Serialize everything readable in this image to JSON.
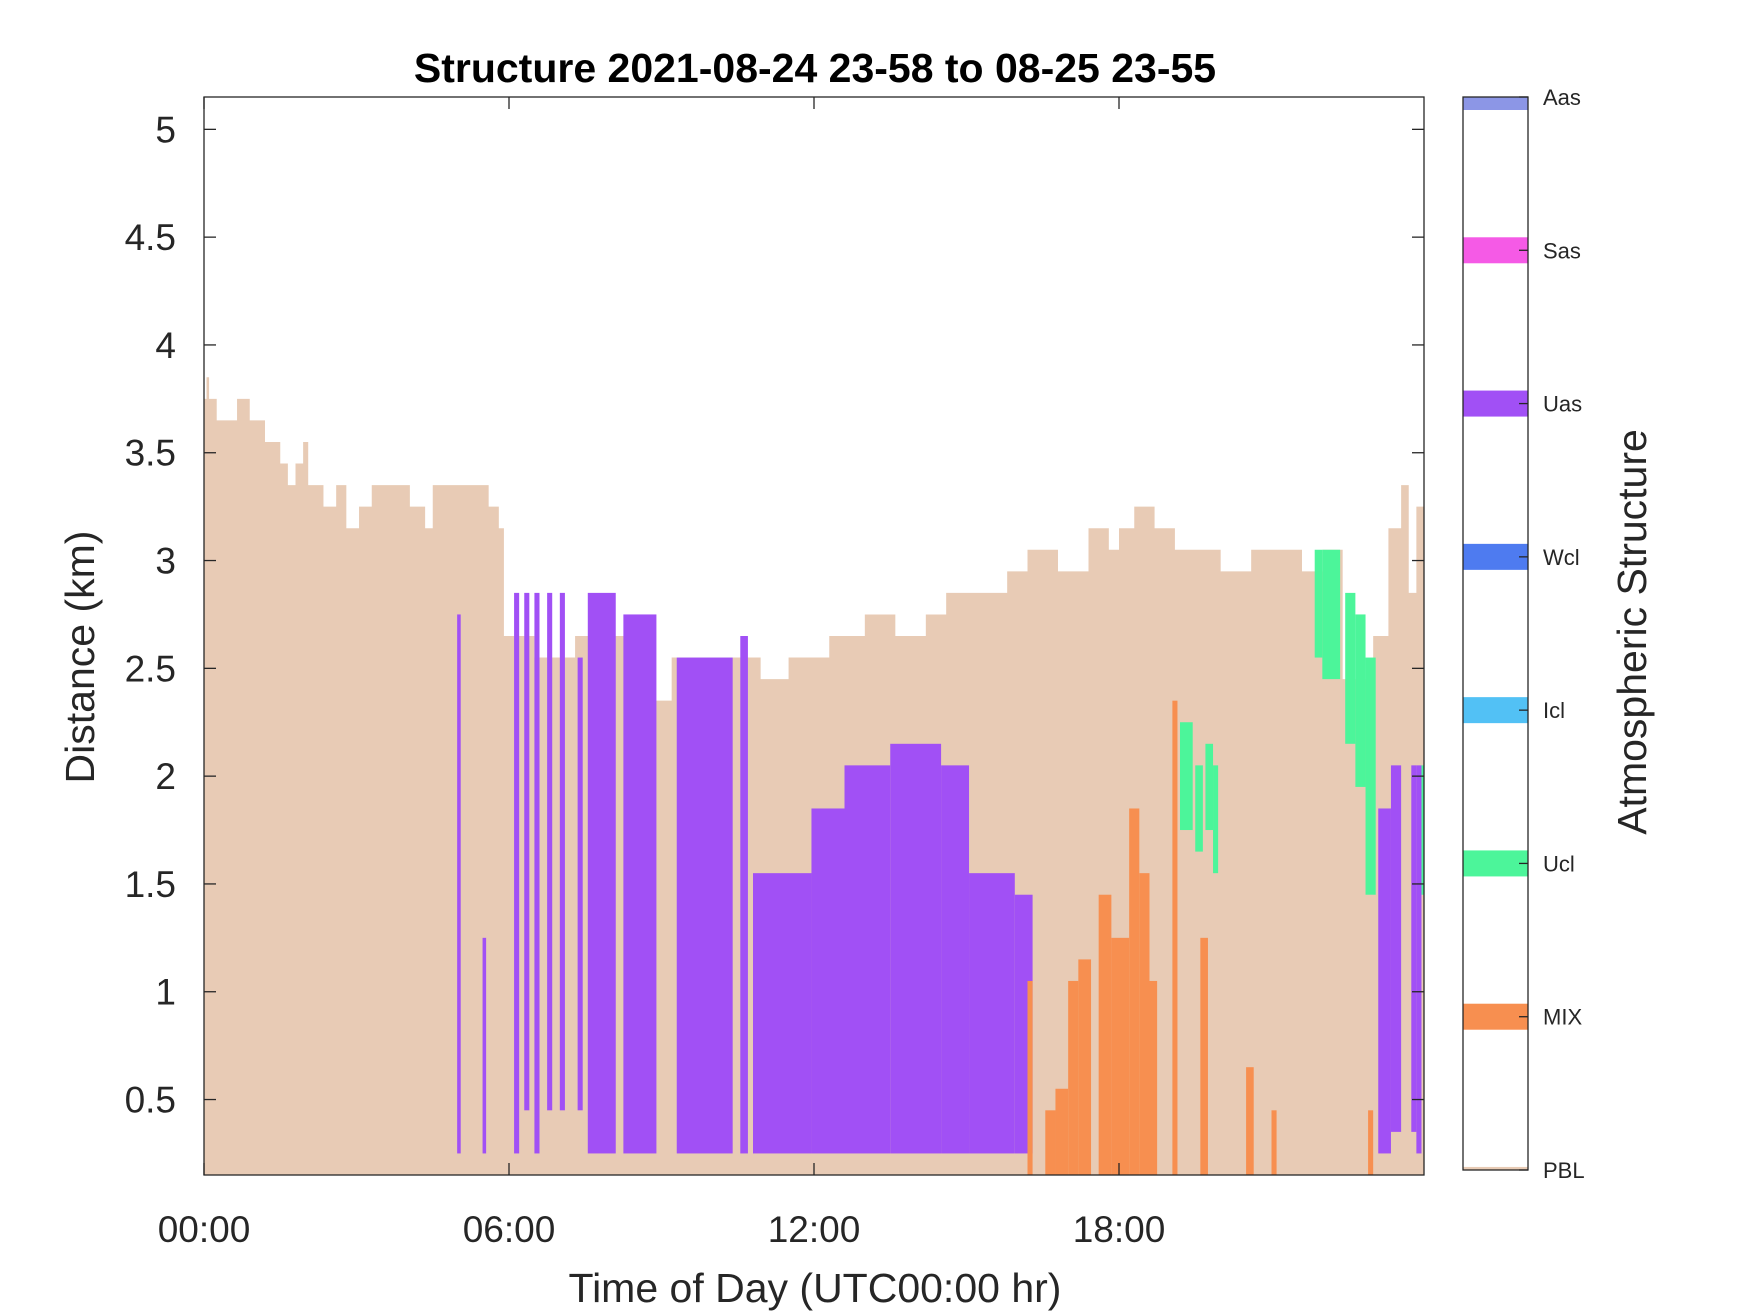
{
  "chart_data": {
    "type": "heatmap",
    "title": "Structure 2021-08-24 23-58 to 08-25 23-55",
    "xlabel": "Time of Day (UTC00:00 hr)",
    "ylabel": "Distance (km)",
    "xlim_hours": [
      0,
      24
    ],
    "ylim_km": [
      0.15,
      5.15
    ],
    "x_ticks": [
      {
        "value": 0,
        "label": "00:00"
      },
      {
        "value": 6,
        "label": "06:00"
      },
      {
        "value": 12,
        "label": "12:00"
      },
      {
        "value": 18,
        "label": "18:00"
      }
    ],
    "y_ticks": [
      {
        "value": 0.5,
        "label": "0.5"
      },
      {
        "value": 1,
        "label": "1"
      },
      {
        "value": 1.5,
        "label": "1.5"
      },
      {
        "value": 2,
        "label": "2"
      },
      {
        "value": 2.5,
        "label": "2.5"
      },
      {
        "value": 3,
        "label": "3"
      },
      {
        "value": 3.5,
        "label": "3.5"
      },
      {
        "value": 4,
        "label": "4"
      },
      {
        "value": 4.5,
        "label": "4.5"
      },
      {
        "value": 5,
        "label": "5"
      }
    ],
    "colorbar": {
      "label": "Atmospheric Structure",
      "categories": [
        {
          "name": "PBL",
          "color": "#E8CBB5"
        },
        {
          "name": "MIX",
          "color": "#F78F50"
        },
        {
          "name": "Ucl",
          "color": "#4CF59A"
        },
        {
          "name": "Icl",
          "color": "#52C1F5"
        },
        {
          "name": "Wcl",
          "color": "#4E7BF0"
        },
        {
          "name": "Uas",
          "color": "#A150F5"
        },
        {
          "name": "Sas",
          "color": "#F55AE6"
        },
        {
          "name": "Aas",
          "color": "#8C96E6"
        }
      ]
    },
    "pbl_top_km": [
      [
        0.0,
        3.75
      ],
      [
        0.05,
        3.85
      ],
      [
        0.1,
        3.75
      ],
      [
        0.25,
        3.65
      ],
      [
        0.65,
        3.75
      ],
      [
        0.9,
        3.65
      ],
      [
        1.2,
        3.55
      ],
      [
        1.5,
        3.45
      ],
      [
        1.65,
        3.35
      ],
      [
        1.8,
        3.45
      ],
      [
        1.95,
        3.55
      ],
      [
        2.05,
        3.35
      ],
      [
        2.35,
        3.25
      ],
      [
        2.6,
        3.35
      ],
      [
        2.8,
        3.15
      ],
      [
        3.05,
        3.25
      ],
      [
        3.3,
        3.35
      ],
      [
        4.05,
        3.25
      ],
      [
        4.35,
        3.15
      ],
      [
        4.5,
        3.35
      ],
      [
        5.6,
        3.25
      ],
      [
        5.8,
        3.15
      ],
      [
        5.9,
        2.65
      ],
      [
        6.5,
        2.55
      ],
      [
        7.3,
        2.65
      ],
      [
        8.7,
        2.35
      ],
      [
        9.2,
        2.55
      ],
      [
        10.2,
        2.55
      ],
      [
        10.5,
        2.55
      ],
      [
        10.95,
        2.45
      ],
      [
        11.5,
        2.55
      ],
      [
        12.2,
        2.55
      ],
      [
        12.3,
        2.65
      ],
      [
        13.0,
        2.75
      ],
      [
        13.6,
        2.65
      ],
      [
        14.2,
        2.75
      ],
      [
        14.6,
        2.85
      ],
      [
        15.3,
        2.85
      ],
      [
        15.8,
        2.95
      ],
      [
        16.2,
        3.05
      ],
      [
        16.8,
        2.95
      ],
      [
        17.4,
        3.15
      ],
      [
        17.8,
        3.05
      ],
      [
        18.0,
        3.15
      ],
      [
        18.3,
        3.25
      ],
      [
        18.7,
        3.15
      ],
      [
        19.1,
        3.05
      ],
      [
        20.0,
        2.95
      ],
      [
        20.6,
        3.05
      ],
      [
        21.2,
        3.05
      ],
      [
        21.6,
        2.95
      ],
      [
        22.0,
        3.05
      ],
      [
        22.4,
        2.45
      ],
      [
        23.0,
        2.65
      ],
      [
        23.3,
        3.15
      ],
      [
        23.55,
        3.35
      ],
      [
        23.7,
        2.85
      ],
      [
        23.85,
        3.25
      ],
      [
        24.0,
        3.25
      ]
    ],
    "layers": [
      {
        "category": "Uas",
        "t0": 4.98,
        "t1": 5.05,
        "bottom_km": 0.25,
        "top_km": 2.75
      },
      {
        "category": "Uas",
        "t0": 5.48,
        "t1": 5.55,
        "bottom_km": 0.25,
        "top_km": 1.25
      },
      {
        "category": "Uas",
        "t0": 6.1,
        "t1": 6.2,
        "bottom_km": 0.25,
        "top_km": 2.85
      },
      {
        "category": "Uas",
        "t0": 6.3,
        "t1": 6.4,
        "bottom_km": 0.45,
        "top_km": 2.85
      },
      {
        "category": "Uas",
        "t0": 6.5,
        "t1": 6.6,
        "bottom_km": 0.25,
        "top_km": 2.85
      },
      {
        "category": "Uas",
        "t0": 6.75,
        "t1": 6.85,
        "bottom_km": 0.45,
        "top_km": 2.85
      },
      {
        "category": "Uas",
        "t0": 7.0,
        "t1": 7.1,
        "bottom_km": 0.45,
        "top_km": 2.85
      },
      {
        "category": "Uas",
        "t0": 7.35,
        "t1": 7.45,
        "bottom_km": 0.45,
        "top_km": 2.55
      },
      {
        "category": "Uas",
        "t0": 7.55,
        "t1": 8.1,
        "bottom_km": 0.25,
        "top_km": 2.85
      },
      {
        "category": "Uas",
        "t0": 8.25,
        "t1": 8.9,
        "bottom_km": 0.25,
        "top_km": 2.75
      },
      {
        "category": "Uas",
        "t0": 9.3,
        "t1": 10.4,
        "bottom_km": 0.25,
        "top_km": 2.55
      },
      {
        "category": "Uas",
        "t0": 10.55,
        "t1": 10.7,
        "bottom_km": 0.25,
        "top_km": 2.65
      },
      {
        "category": "Uas",
        "t0": 10.8,
        "t1": 11.95,
        "bottom_km": 0.25,
        "top_km": 1.55
      },
      {
        "category": "Uas",
        "t0": 11.95,
        "t1": 12.6,
        "bottom_km": 0.25,
        "top_km": 1.85
      },
      {
        "category": "Uas",
        "t0": 12.6,
        "t1": 13.5,
        "bottom_km": 0.25,
        "top_km": 2.05
      },
      {
        "category": "Uas",
        "t0": 13.5,
        "t1": 14.5,
        "bottom_km": 0.25,
        "top_km": 2.15
      },
      {
        "category": "Uas",
        "t0": 14.5,
        "t1": 15.05,
        "bottom_km": 0.25,
        "top_km": 2.05
      },
      {
        "category": "Uas",
        "t0": 15.05,
        "t1": 15.95,
        "bottom_km": 0.25,
        "top_km": 1.55
      },
      {
        "category": "Uas",
        "t0": 15.95,
        "t1": 16.3,
        "bottom_km": 0.25,
        "top_km": 1.45
      },
      {
        "category": "Uas",
        "t0": 23.1,
        "t1": 23.35,
        "bottom_km": 0.25,
        "top_km": 1.85
      },
      {
        "category": "Uas",
        "t0": 23.35,
        "t1": 23.55,
        "bottom_km": 0.35,
        "top_km": 2.05
      },
      {
        "category": "Uas",
        "t0": 23.75,
        "t1": 23.85,
        "bottom_km": 0.35,
        "top_km": 2.05
      },
      {
        "category": "Uas",
        "t0": 23.85,
        "t1": 23.95,
        "bottom_km": 0.25,
        "top_km": 2.05
      },
      {
        "category": "MIX",
        "t0": 16.2,
        "t1": 16.3,
        "bottom_km": 0.15,
        "top_km": 1.05
      },
      {
        "category": "MIX",
        "t0": 16.55,
        "t1": 16.75,
        "bottom_km": 0.15,
        "top_km": 0.45
      },
      {
        "category": "MIX",
        "t0": 16.75,
        "t1": 17.0,
        "bottom_km": 0.15,
        "top_km": 0.55
      },
      {
        "category": "MIX",
        "t0": 17.0,
        "t1": 17.2,
        "bottom_km": 0.15,
        "top_km": 1.05
      },
      {
        "category": "MIX",
        "t0": 17.2,
        "t1": 17.45,
        "bottom_km": 0.15,
        "top_km": 1.15
      },
      {
        "category": "MIX",
        "t0": 17.6,
        "t1": 17.85,
        "bottom_km": 0.15,
        "top_km": 1.45
      },
      {
        "category": "MIX",
        "t0": 17.85,
        "t1": 18.2,
        "bottom_km": 0.15,
        "top_km": 1.25
      },
      {
        "category": "MIX",
        "t0": 18.2,
        "t1": 18.4,
        "bottom_km": 0.15,
        "top_km": 1.85
      },
      {
        "category": "MIX",
        "t0": 18.4,
        "t1": 18.6,
        "bottom_km": 0.15,
        "top_km": 1.55
      },
      {
        "category": "MIX",
        "t0": 18.6,
        "t1": 18.75,
        "bottom_km": 0.15,
        "top_km": 1.05
      },
      {
        "category": "MIX",
        "t0": 19.05,
        "t1": 19.15,
        "bottom_km": 0.15,
        "top_km": 2.35
      },
      {
        "category": "MIX",
        "t0": 19.6,
        "t1": 19.75,
        "bottom_km": 0.15,
        "top_km": 1.25
      },
      {
        "category": "MIX",
        "t0": 20.5,
        "t1": 20.65,
        "bottom_km": 0.15,
        "top_km": 0.65
      },
      {
        "category": "MIX",
        "t0": 21.0,
        "t1": 21.1,
        "bottom_km": 0.15,
        "top_km": 0.45
      },
      {
        "category": "MIX",
        "t0": 22.9,
        "t1": 23.0,
        "bottom_km": 0.15,
        "top_km": 0.45
      },
      {
        "category": "Ucl",
        "t0": 19.2,
        "t1": 19.45,
        "bottom_km": 1.75,
        "top_km": 2.25
      },
      {
        "category": "Ucl",
        "t0": 19.5,
        "t1": 19.65,
        "bottom_km": 1.65,
        "top_km": 2.05
      },
      {
        "category": "Ucl",
        "t0": 19.7,
        "t1": 19.85,
        "bottom_km": 1.75,
        "top_km": 2.15
      },
      {
        "category": "Ucl",
        "t0": 19.85,
        "t1": 19.95,
        "bottom_km": 1.55,
        "top_km": 2.05
      },
      {
        "category": "Ucl",
        "t0": 21.85,
        "t1": 22.0,
        "bottom_km": 2.55,
        "top_km": 3.05
      },
      {
        "category": "Ucl",
        "t0": 22.0,
        "t1": 22.35,
        "bottom_km": 2.45,
        "top_km": 3.05
      },
      {
        "category": "Ucl",
        "t0": 22.45,
        "t1": 22.65,
        "bottom_km": 2.15,
        "top_km": 2.85
      },
      {
        "category": "Ucl",
        "t0": 22.65,
        "t1": 22.85,
        "bottom_km": 1.95,
        "top_km": 2.75
      },
      {
        "category": "Ucl",
        "t0": 22.85,
        "t1": 23.05,
        "bottom_km": 1.45,
        "top_km": 2.55
      },
      {
        "category": "Ucl",
        "t0": 23.95,
        "t1": 24.0,
        "bottom_km": 1.45,
        "top_km": 2.05
      }
    ]
  }
}
